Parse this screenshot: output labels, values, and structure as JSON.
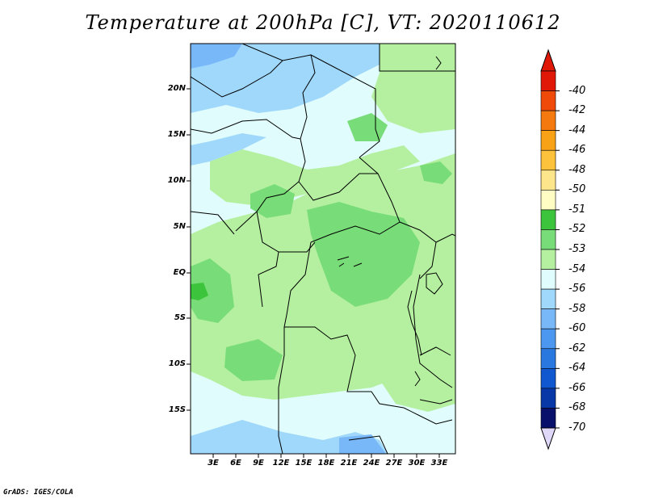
{
  "title": "Temperature at 200hPa [C], VT: 2020110612",
  "credit": "GrADS: IGES/COLA",
  "map": {
    "region": "Central Africa",
    "lat_labels": [
      "20N",
      "15N",
      "10N",
      "5N",
      "EQ",
      "5S",
      "10S",
      "15S"
    ],
    "lon_labels": [
      "3E",
      "6E",
      "9E",
      "12E",
      "15E",
      "18E",
      "21E",
      "24E",
      "27E",
      "30E",
      "33E"
    ]
  },
  "colorbar": {
    "labels": [
      "-40",
      "-42",
      "-44",
      "-46",
      "-48",
      "-50",
      "-51",
      "-52",
      "-53",
      "-54",
      "-56",
      "-58",
      "-60",
      "-62",
      "-64",
      "-66",
      "-68",
      "-70"
    ],
    "colors": [
      "#e01808",
      "#f04a0a",
      "#f47a10",
      "#f8a218",
      "#fcc23c",
      "#fde58c",
      "#fffcc4",
      "#3cc43c",
      "#78dc78",
      "#b4f0a0",
      "#e0fcfc",
      "#a0d8fc",
      "#78b8f8",
      "#4c98f0",
      "#2878e0",
      "#1058d0",
      "#0838a8",
      "#08106c"
    ],
    "over_color": "#e01808",
    "under_color": "#e0d8f8"
  },
  "colors": {
    "land_base": "#e0fcfc",
    "shade_53": "#b4f0a0",
    "shade_52": "#78dc78",
    "shade_51": "#3cc43c",
    "shade_56": "#a0d8fc",
    "shade_58": "#78b8f8"
  }
}
